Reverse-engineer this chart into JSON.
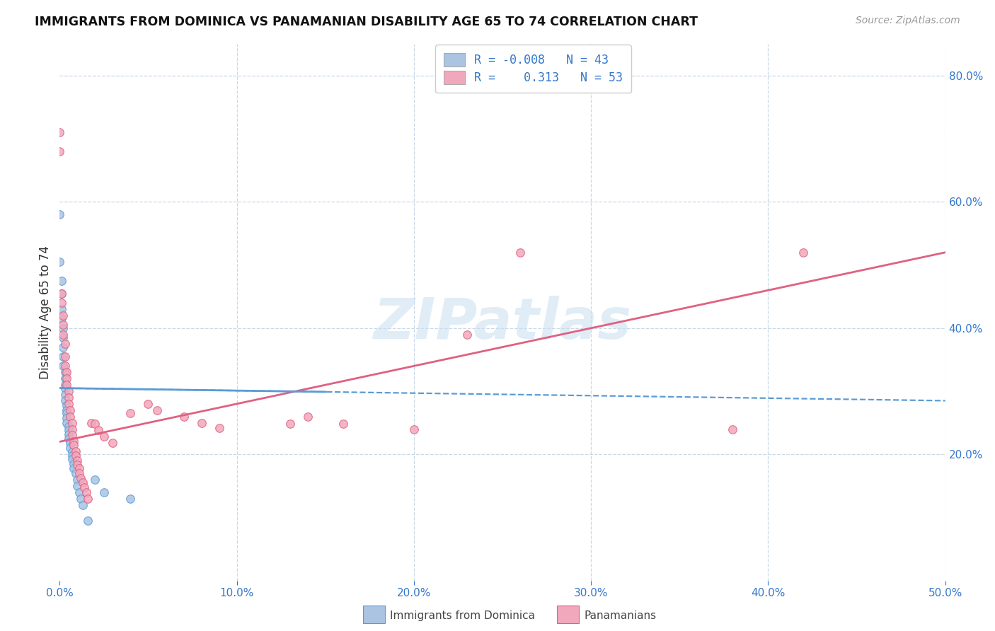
{
  "title": "IMMIGRANTS FROM DOMINICA VS PANAMANIAN DISABILITY AGE 65 TO 74 CORRELATION CHART",
  "source": "Source: ZipAtlas.com",
  "ylabel": "Disability Age 65 to 74",
  "xlim": [
    0.0,
    0.5
  ],
  "ylim": [
    0.0,
    0.85
  ],
  "xticks": [
    0.0,
    0.1,
    0.2,
    0.3,
    0.4,
    0.5
  ],
  "xticklabels": [
    "0.0%",
    "10.0%",
    "20.0%",
    "30.0%",
    "40.0%",
    "50.0%"
  ],
  "yticks_right": [
    0.2,
    0.4,
    0.6,
    0.8
  ],
  "ytick_right_labels": [
    "20.0%",
    "40.0%",
    "60.0%",
    "80.0%"
  ],
  "color_blue": "#aac4e2",
  "color_pink": "#f2a8bc",
  "line_blue": "#5b9bd5",
  "line_pink": "#e06080",
  "watermark": "ZIPatlas",
  "blue_scatter_x": [
    0.0,
    0.0,
    0.001,
    0.001,
    0.001,
    0.001,
    0.002,
    0.002,
    0.002,
    0.002,
    0.002,
    0.003,
    0.003,
    0.003,
    0.003,
    0.003,
    0.003,
    0.004,
    0.004,
    0.004,
    0.004,
    0.004,
    0.005,
    0.005,
    0.005,
    0.005,
    0.006,
    0.006,
    0.007,
    0.007,
    0.007,
    0.008,
    0.008,
    0.009,
    0.01,
    0.01,
    0.011,
    0.012,
    0.013,
    0.016,
    0.02,
    0.025,
    0.04
  ],
  "blue_scatter_y": [
    0.58,
    0.505,
    0.475,
    0.455,
    0.43,
    0.415,
    0.4,
    0.385,
    0.37,
    0.355,
    0.34,
    0.33,
    0.32,
    0.31,
    0.305,
    0.295,
    0.285,
    0.278,
    0.27,
    0.265,
    0.258,
    0.25,
    0.244,
    0.238,
    0.232,
    0.225,
    0.218,
    0.21,
    0.204,
    0.198,
    0.192,
    0.185,
    0.178,
    0.17,
    0.16,
    0.15,
    0.14,
    0.13,
    0.12,
    0.095,
    0.16,
    0.14,
    0.13
  ],
  "pink_scatter_x": [
    0.0,
    0.0,
    0.001,
    0.001,
    0.002,
    0.002,
    0.002,
    0.003,
    0.003,
    0.003,
    0.004,
    0.004,
    0.004,
    0.005,
    0.005,
    0.005,
    0.006,
    0.006,
    0.007,
    0.007,
    0.007,
    0.008,
    0.008,
    0.009,
    0.009,
    0.01,
    0.01,
    0.011,
    0.011,
    0.012,
    0.013,
    0.014,
    0.015,
    0.016,
    0.018,
    0.02,
    0.022,
    0.025,
    0.03,
    0.04,
    0.05,
    0.055,
    0.07,
    0.08,
    0.09,
    0.13,
    0.14,
    0.16,
    0.2,
    0.23,
    0.26,
    0.38,
    0.42
  ],
  "pink_scatter_y": [
    0.71,
    0.68,
    0.455,
    0.44,
    0.42,
    0.405,
    0.39,
    0.375,
    0.355,
    0.34,
    0.33,
    0.32,
    0.31,
    0.3,
    0.29,
    0.28,
    0.27,
    0.26,
    0.25,
    0.24,
    0.23,
    0.22,
    0.215,
    0.205,
    0.198,
    0.19,
    0.184,
    0.178,
    0.17,
    0.162,
    0.155,
    0.148,
    0.14,
    0.13,
    0.25,
    0.248,
    0.238,
    0.228,
    0.218,
    0.265,
    0.28,
    0.27,
    0.26,
    0.25,
    0.242,
    0.248,
    0.26,
    0.248,
    0.24,
    0.39,
    0.52,
    0.24,
    0.52
  ]
}
